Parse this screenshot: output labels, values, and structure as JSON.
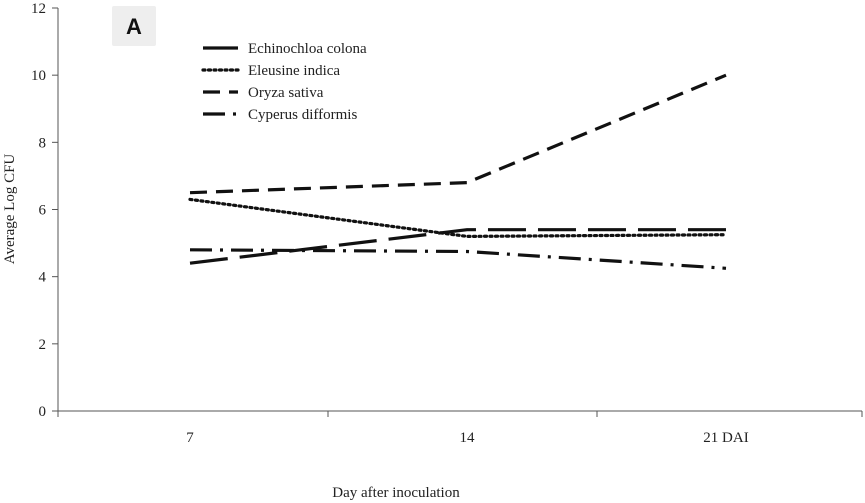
{
  "panel_label": "A",
  "chart_data": {
    "type": "line",
    "categories": [
      "7",
      "14",
      "21 DAI"
    ],
    "ylim": [
      0,
      12
    ],
    "yticks": [
      0,
      2,
      4,
      6,
      8,
      10,
      12
    ],
    "ylabel": "Average Log CFU",
    "xlabel": "Day after inoculation",
    "grid": false,
    "legend_position": "top-left",
    "series": [
      {
        "name": "Echinochloa colona",
        "values": [
          4.4,
          5.4,
          5.4
        ],
        "dash": "long"
      },
      {
        "name": "Eleusine indica",
        "values": [
          6.3,
          5.2,
          5.25
        ],
        "dash": "dot"
      },
      {
        "name": "Oryza sativa",
        "values": [
          6.5,
          6.8,
          10.0
        ],
        "dash": "dash"
      },
      {
        "name": "Cyperus difformis",
        "values": [
          4.8,
          4.75,
          4.25
        ],
        "dash": "dashdot"
      }
    ]
  }
}
